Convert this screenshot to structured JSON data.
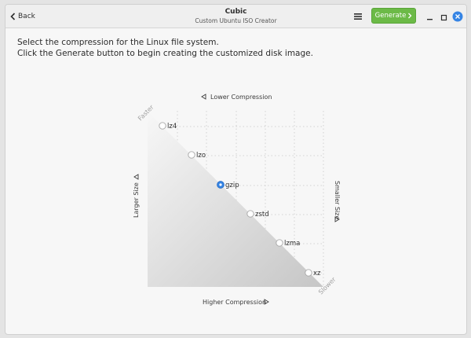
{
  "window": {
    "title": "Cubic",
    "subtitle": "Custom Ubuntu ISO Creator"
  },
  "header": {
    "back_label": "Back",
    "generate_label": "Generate"
  },
  "instructions": {
    "line1": "Select the compression for the Linux file system.",
    "line2": "Click the Generate button to begin creating the customized disk image."
  },
  "compression": {
    "top_label": "Lower Compression",
    "bottom_label": "Higher Compression",
    "left_label": "Larger Size",
    "right_label": "Smaller Size",
    "faster_label": "Faster",
    "slower_label": "Slower",
    "selected": "gzip",
    "options": [
      {
        "id": "lz4",
        "label": "lz4"
      },
      {
        "id": "lzo",
        "label": "lzo"
      },
      {
        "id": "gzip",
        "label": "gzip"
      },
      {
        "id": "zstd",
        "label": "zstd"
      },
      {
        "id": "lzma",
        "label": "lzma"
      },
      {
        "id": "xz",
        "label": "xz"
      }
    ]
  },
  "colors": {
    "accent": "#3584e4",
    "generate": "#6cba47",
    "close": "#3584e4"
  },
  "icons": {
    "back": "chevron-left-icon",
    "menu": "hamburger-menu-icon",
    "generate": "chevron-right-icon",
    "minimize": "minimize-icon",
    "maximize": "maximize-icon",
    "close": "close-icon"
  }
}
